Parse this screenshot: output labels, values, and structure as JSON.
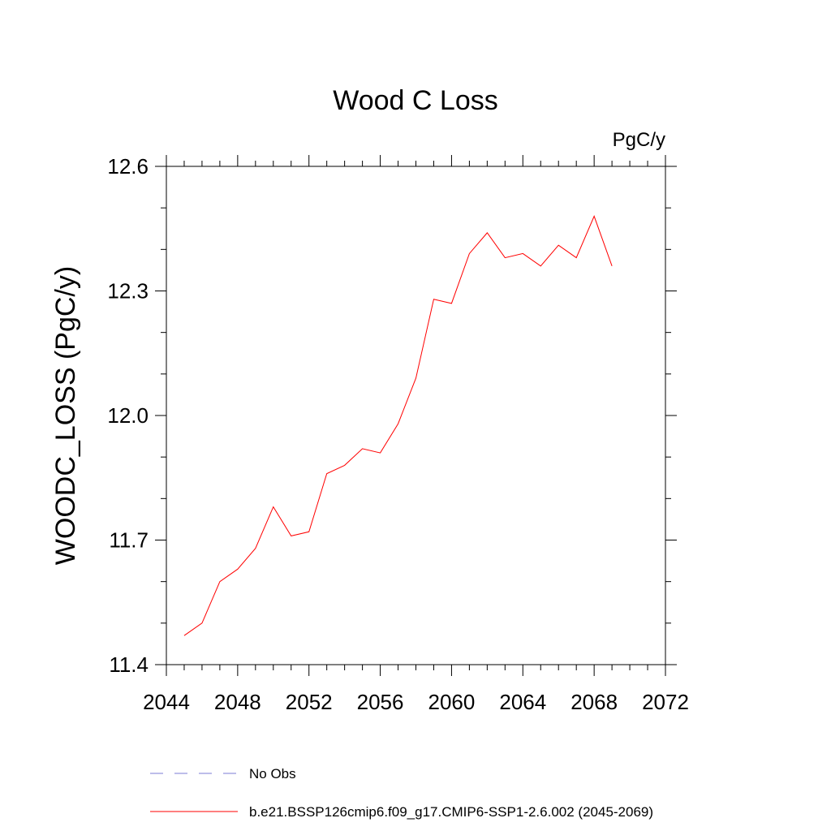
{
  "chart_data": {
    "type": "line",
    "title": "Wood C Loss",
    "units": "PgC/y",
    "ylabel": "WOODC_LOSS  (PgC/y)",
    "xlabel": "",
    "xlim": [
      2044,
      2072
    ],
    "ylim": [
      11.4,
      12.6
    ],
    "xticks": [
      2044,
      2048,
      2052,
      2056,
      2060,
      2064,
      2068,
      2072
    ],
    "yticks": [
      11.4,
      11.7,
      12.0,
      12.3,
      12.6
    ],
    "ytick_labels": [
      "11.4",
      "11.7",
      "12.0",
      "12.3",
      "12.6"
    ],
    "x_minor_step": 1,
    "y_minor_step": 0.1,
    "grid": false,
    "legend_position": "bottom-left",
    "legend": [
      {
        "label": "No Obs",
        "style": "dashed",
        "color": "#7b7bd6"
      },
      {
        "label": "b.e21.BSSP126cmip6.f09_g17.CMIP6-SSP1-2.6.002 (2045-2069)",
        "style": "solid",
        "color": "#ff0000"
      }
    ],
    "series": [
      {
        "name": "b.e21.BSSP126cmip6.f09_g17.CMIP6-SSP1-2.6.002 (2045-2069)",
        "color": "#ff0000",
        "x": [
          2045,
          2046,
          2047,
          2048,
          2049,
          2050,
          2051,
          2052,
          2053,
          2054,
          2055,
          2056,
          2057,
          2058,
          2059,
          2060,
          2061,
          2062,
          2063,
          2064,
          2065,
          2066,
          2067,
          2068,
          2069
        ],
        "y": [
          11.47,
          11.5,
          11.6,
          11.63,
          11.68,
          11.78,
          11.71,
          11.72,
          11.86,
          11.88,
          11.92,
          11.91,
          11.98,
          12.09,
          12.28,
          12.27,
          12.39,
          12.44,
          12.38,
          12.39,
          12.36,
          12.41,
          12.38,
          12.48,
          12.36
        ]
      }
    ]
  }
}
